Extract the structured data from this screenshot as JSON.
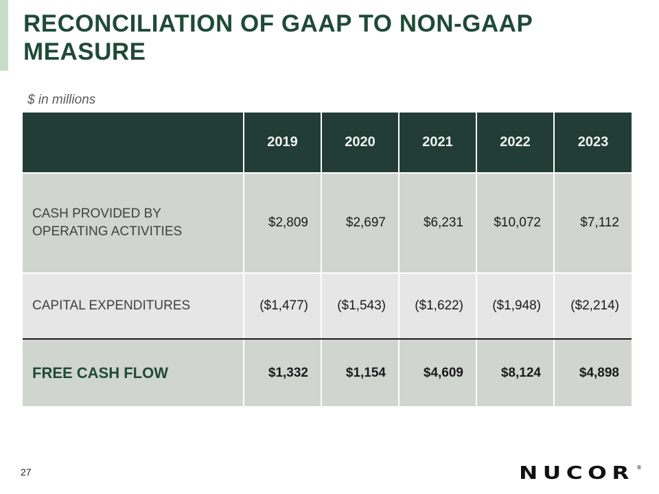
{
  "slide": {
    "title": "RECONCILIATION OF GAAP TO NON-GAAP MEASURE",
    "subtitle": "$ in millions",
    "page_number": "27",
    "brand": "NUCOR",
    "brand_mark": "®"
  },
  "table": {
    "years": [
      "2019",
      "2020",
      "2021",
      "2022",
      "2023"
    ],
    "rows": [
      {
        "label_lines": [
          "CASH PROVIDED BY",
          "OPERATING ACTIVITIES"
        ],
        "values": [
          "$2,809",
          "$2,697",
          "$6,231",
          "$10,072",
          "$7,112"
        ]
      },
      {
        "label": "CAPITAL EXPENDITURES",
        "values": [
          "($1,477)",
          "($1,543)",
          "($1,622)",
          "($1,948)",
          "($2,214)"
        ]
      },
      {
        "label": "FREE CASH FLOW",
        "values": [
          "$1,332",
          "$1,154",
          "$4,609",
          "$8,124",
          "$4,898"
        ]
      }
    ]
  }
}
